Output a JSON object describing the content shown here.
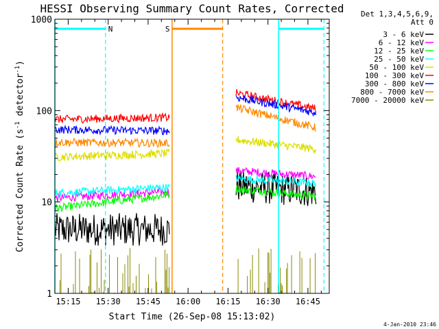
{
  "chart_data": {
    "type": "line",
    "title": "HESSI Observing Summary Count Rates, Corrected",
    "xlabel": "Start Time (26-Sep-08 15:13:02)",
    "ylabel": "Corrected Count Rate (s⁻¹ detector⁻¹)",
    "ylabel_main": "Corrected Count Rate (s",
    "ylabel_exp1": "-1",
    "ylabel_mid": " detector",
    "ylabel_exp2": "-1",
    "ylabel_end": ")",
    "yscale": "log",
    "ylim": [
      1,
      1000
    ],
    "xlim": [
      "15:10",
      "16:53"
    ],
    "x_ticks": [
      "15:15",
      "15:30",
      "15:45",
      "16:00",
      "16:15",
      "16:30",
      "16:45"
    ],
    "y_ticks": [
      "1",
      "10",
      "100",
      "1000"
    ],
    "legend_header": [
      "Det 1,3,4,5,6,9,",
      "Att 0"
    ],
    "legend_position": "right",
    "series": [
      {
        "name": "3 - 6 keV",
        "color": "#000000",
        "segments": [
          {
            "x": [
              "15:10",
              "15:53"
            ],
            "y": [
              5.0,
              5.0
            ]
          },
          {
            "x": [
              "16:18",
              "16:48"
            ],
            "y": [
              15.0,
              13.0
            ]
          }
        ]
      },
      {
        "name": "6 - 12 keV",
        "color": "#ff00ff",
        "segments": [
          {
            "x": [
              "15:10",
              "15:53"
            ],
            "y": [
              11.0,
              13.0
            ]
          },
          {
            "x": [
              "16:18",
              "16:48"
            ],
            "y": [
              22.0,
              19.0
            ]
          }
        ]
      },
      {
        "name": "12 - 25 keV",
        "color": "#00ff00",
        "segments": [
          {
            "x": [
              "15:10",
              "15:53"
            ],
            "y": [
              8.5,
              12.0
            ]
          },
          {
            "x": [
              "16:18",
              "16:48"
            ],
            "y": [
              14.0,
              11.5
            ]
          }
        ]
      },
      {
        "name": "25 - 50 keV",
        "color": "#00ffff",
        "segments": [
          {
            "x": [
              "15:10",
              "15:53"
            ],
            "y": [
              12.5,
              14.5
            ]
          },
          {
            "x": [
              "16:18",
              "16:48"
            ],
            "y": [
              18.0,
              16.0
            ]
          }
        ]
      },
      {
        "name": "50 - 100 keV",
        "color": "#dddd00",
        "segments": [
          {
            "x": [
              "15:10",
              "15:53"
            ],
            "y": [
              31.0,
              34.0
            ]
          },
          {
            "x": [
              "16:18",
              "16:48"
            ],
            "y": [
              48.0,
              38.0
            ]
          }
        ]
      },
      {
        "name": "100 - 300 keV",
        "color": "#ff0000",
        "segments": [
          {
            "x": [
              "15:10",
              "15:53"
            ],
            "y": [
              80.0,
              84.0
            ]
          },
          {
            "x": [
              "16:18",
              "16:48"
            ],
            "y": [
              155.0,
              105.0
            ]
          }
        ]
      },
      {
        "name": "300 - 800 keV",
        "color": "#0000ff",
        "segments": [
          {
            "x": [
              "15:10",
              "15:53"
            ],
            "y": [
              62.0,
              60.0
            ]
          },
          {
            "x": [
              "16:18",
              "16:48"
            ],
            "y": [
              140.0,
              95.0
            ]
          }
        ]
      },
      {
        "name": "800 - 7000 keV",
        "color": "#ff8800",
        "segments": [
          {
            "x": [
              "15:10",
              "15:53"
            ],
            "y": [
              45.0,
              44.0
            ]
          },
          {
            "x": [
              "16:18",
              "16:48"
            ],
            "y": [
              108.0,
              65.0
            ]
          }
        ]
      },
      {
        "name": "7000 - 20000 keV",
        "color": "#888800",
        "segments": [
          {
            "x": [
              "15:10",
              "15:53"
            ],
            "y": [
              1.0,
              1.0
            ]
          },
          {
            "x": [
              "16:18",
              "16:48"
            ],
            "y": [
              1.0,
              1.0
            ]
          }
        ]
      }
    ],
    "intervals": [
      {
        "label": "N",
        "color": "#00ffff",
        "start": "15:10",
        "end": "15:29",
        "style": "night"
      },
      {
        "label": "S",
        "color": "#ff8800",
        "start": "15:54",
        "end": "16:13",
        "style": "saa"
      },
      {
        "label": "",
        "color": "#00ffff",
        "start": "16:34",
        "end": "16:51",
        "style": "night"
      }
    ],
    "grid": false
  },
  "footer": {
    "date_stamp": "4-Jan-2010 23:46"
  },
  "colors": {
    "background": "#ffffff",
    "axes": "#000000"
  }
}
